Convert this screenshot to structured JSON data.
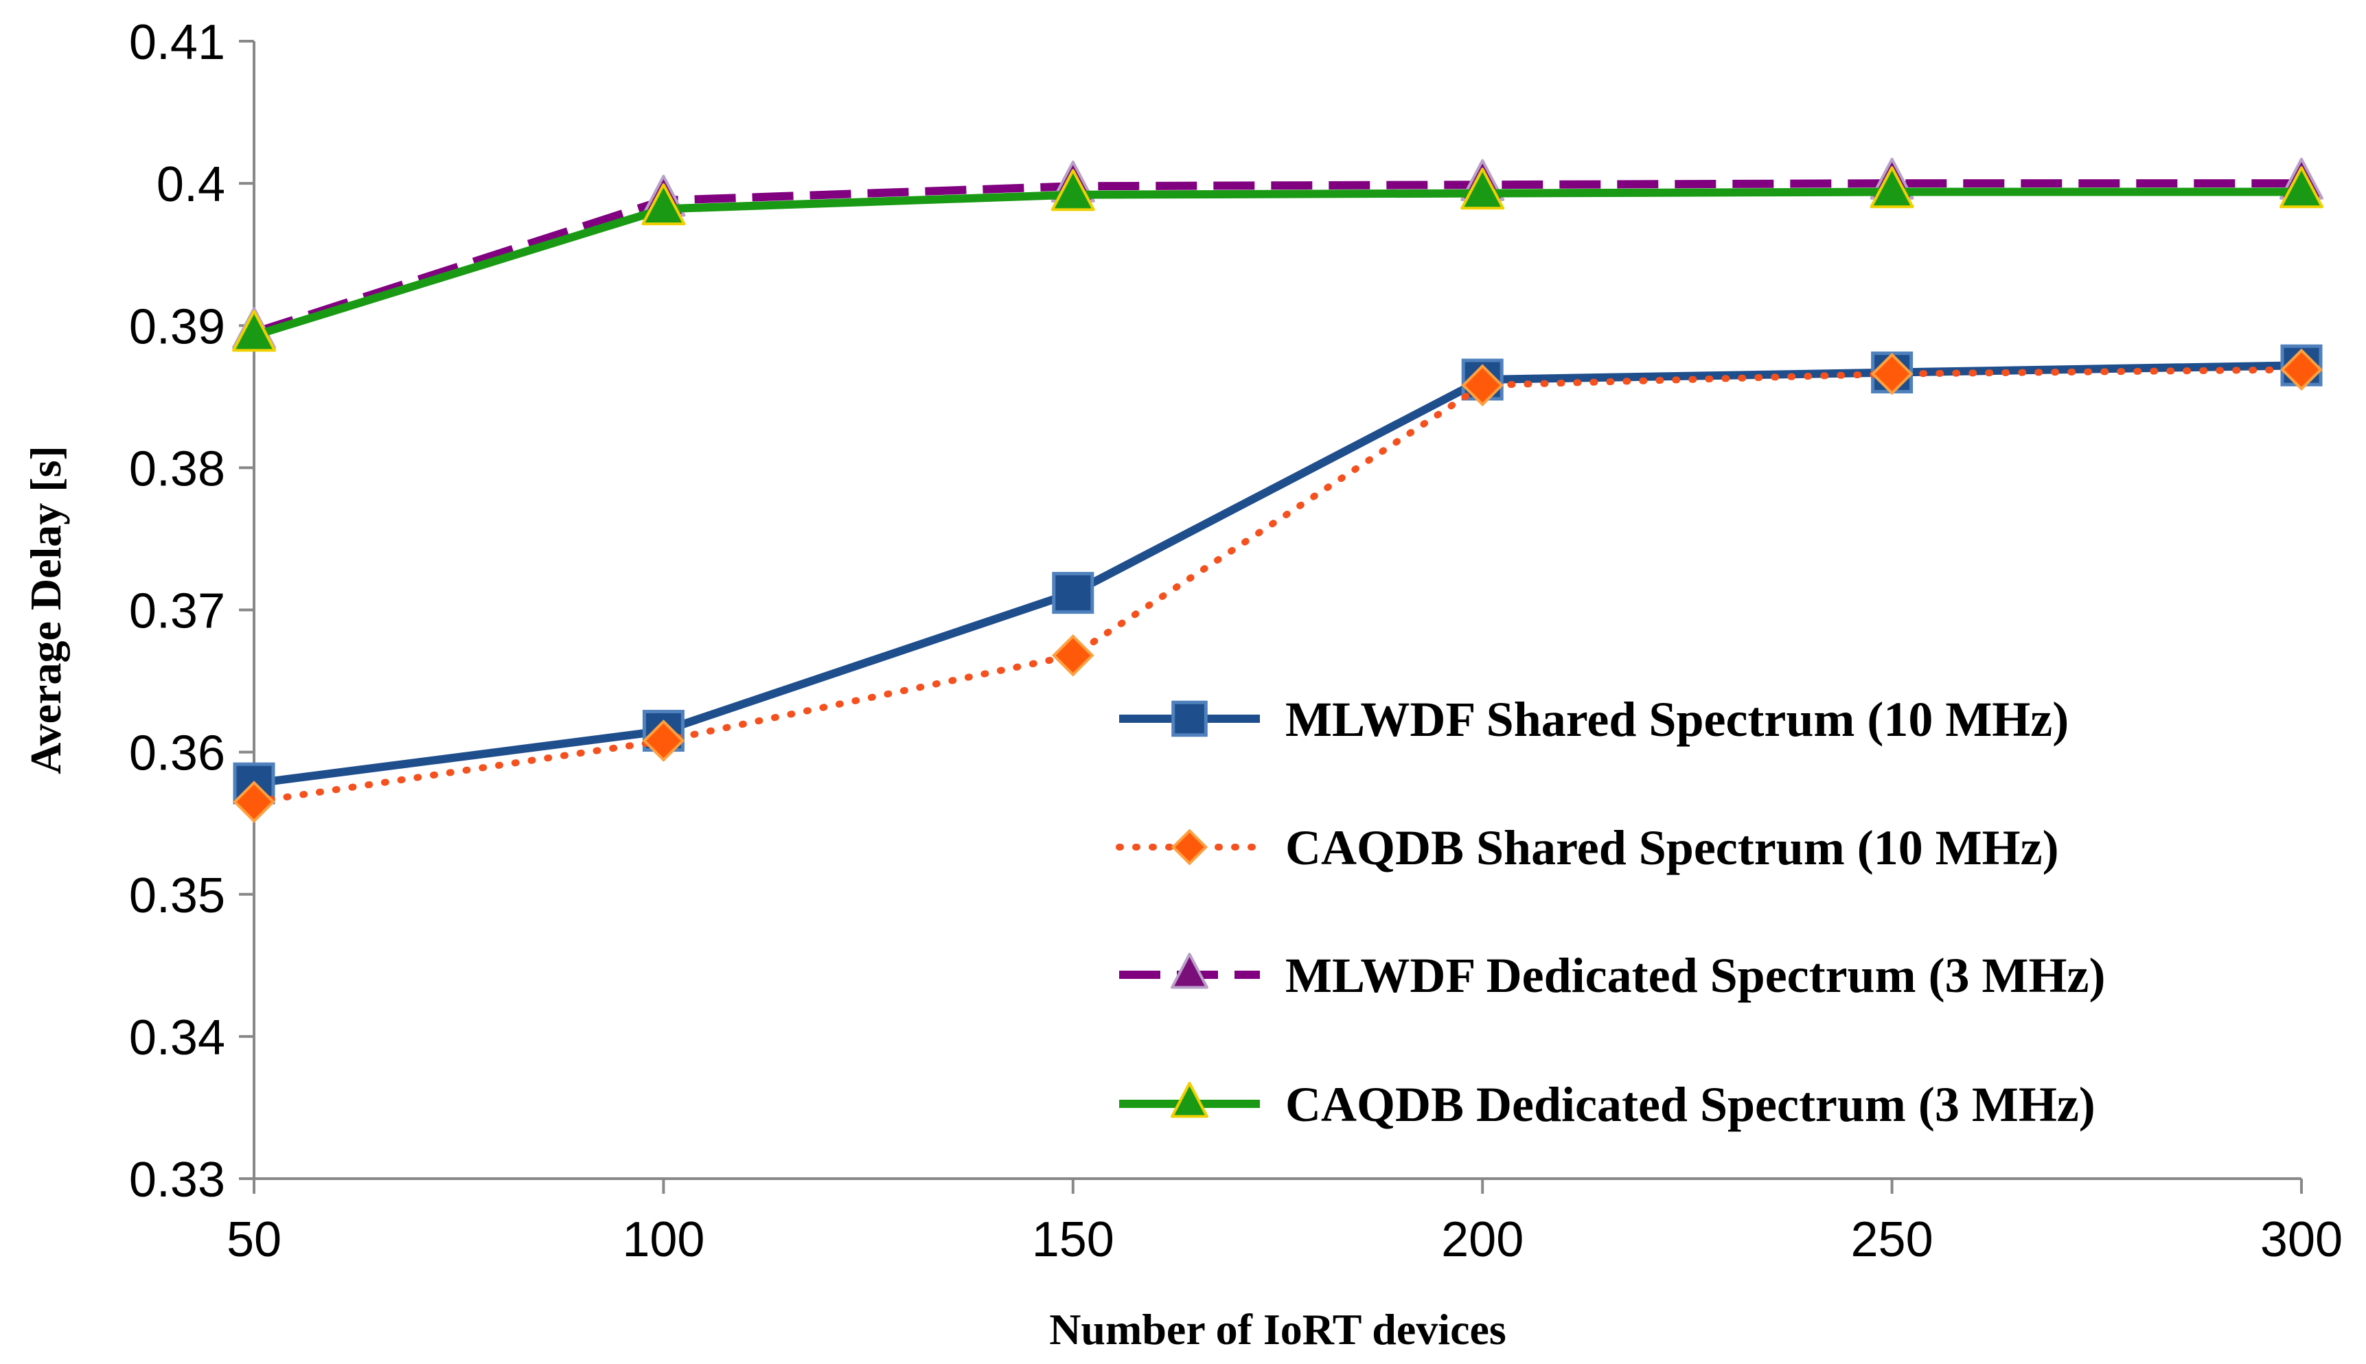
{
  "chart_data": {
    "type": "line",
    "title": "",
    "xlabel": "Number of IoRT devices",
    "ylabel": "Average Delay [s]",
    "x": [
      50,
      100,
      150,
      200,
      250,
      300
    ],
    "xticks": [
      "50",
      "100",
      "150",
      "200",
      "250",
      "300"
    ],
    "ylim": [
      0.33,
      0.41
    ],
    "yticks": [
      "0.33",
      "0.34",
      "0.35",
      "0.36",
      "0.37",
      "0.38",
      "0.39",
      "0.4",
      "0.41"
    ],
    "grid": false,
    "legend_position": "bottom-right",
    "series": [
      {
        "name": "MLWDF Shared Spectrum (10 MHz)",
        "values": [
          0.3578,
          0.3615,
          0.3712,
          0.3862,
          0.3867,
          0.3872
        ],
        "color": "#1F4E8C",
        "marker_fill": "#1F4E8C",
        "marker_stroke": "#4F81BD",
        "line_style": "solid",
        "marker": "square"
      },
      {
        "name": "CAQDB Shared Spectrum (10 MHz)",
        "values": [
          0.3565,
          0.3608,
          0.3668,
          0.3858,
          0.3866,
          0.3869
        ],
        "color": "#F4511E",
        "marker_fill": "#FF5A0A",
        "marker_stroke": "#FFA040",
        "line_style": "dotted",
        "marker": "diamond"
      },
      {
        "name": "MLWDF Dedicated Spectrum (3 MHz)",
        "values": [
          0.3895,
          0.3988,
          0.3998,
          0.3999,
          0.4,
          0.4
        ],
        "color": "#800080",
        "marker_fill": "#7A0F7A",
        "marker_stroke": "#B9A0C8",
        "line_style": "dashed",
        "marker": "triangle"
      },
      {
        "name": "CAQDB Dedicated Spectrum (3 MHz)",
        "values": [
          0.3893,
          0.3982,
          0.3992,
          0.3993,
          0.3994,
          0.3994
        ],
        "color": "#1A9A14",
        "marker_fill": "#1A9A14",
        "marker_stroke": "#F0D000",
        "line_style": "solid",
        "marker": "triangle"
      }
    ]
  }
}
